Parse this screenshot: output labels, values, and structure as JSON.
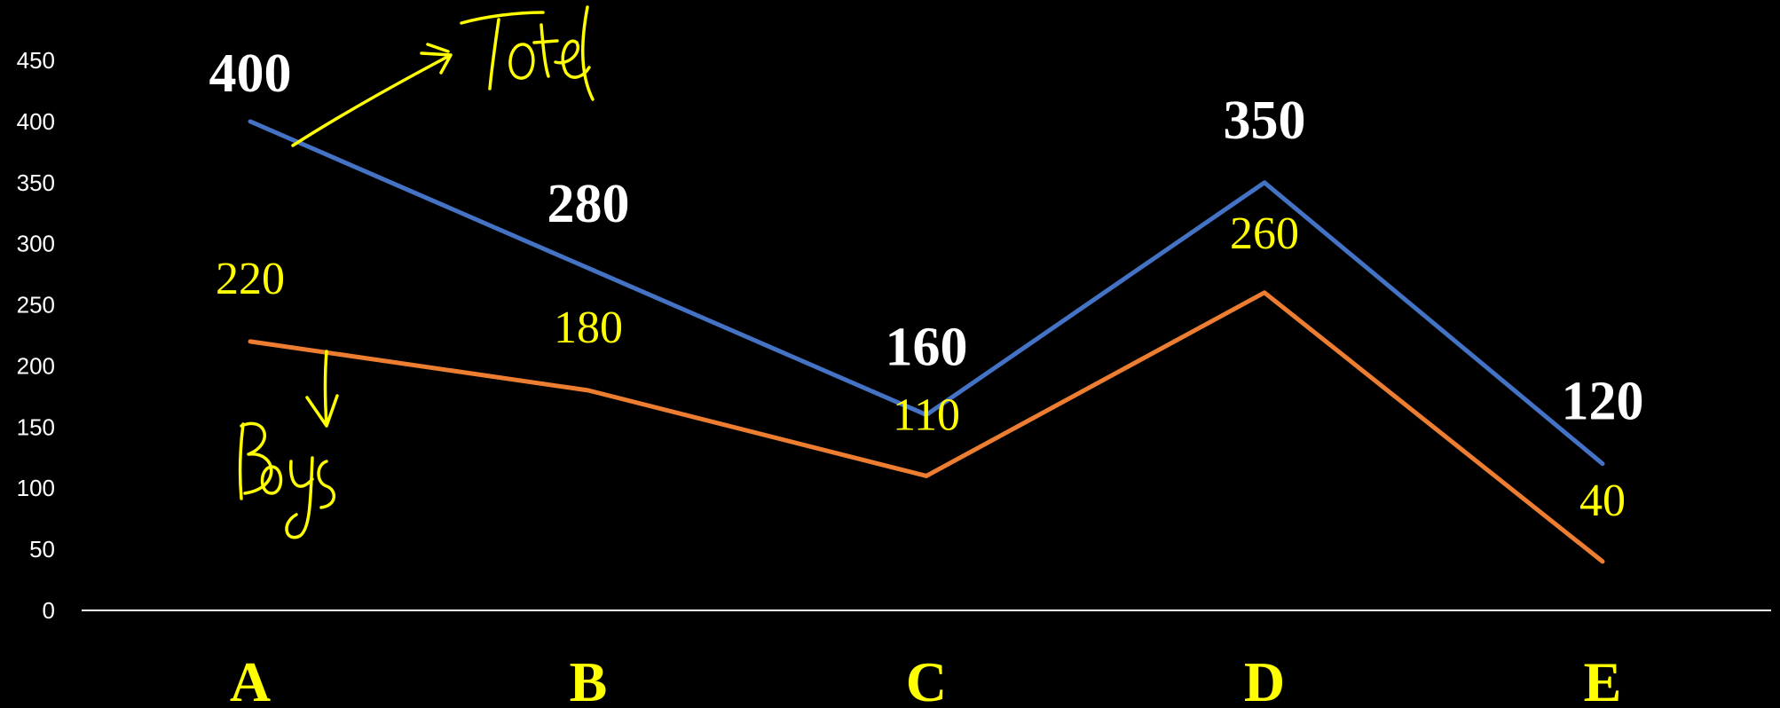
{
  "chart_data": {
    "type": "line",
    "categories": [
      "A",
      "B",
      "C",
      "D",
      "E"
    ],
    "series": [
      {
        "name": "Total",
        "values": [
          400,
          280,
          160,
          350,
          120
        ],
        "color": "#4472c4"
      },
      {
        "name": "Boys",
        "values": [
          220,
          180,
          110,
          260,
          40
        ],
        "color": "#ed7d31"
      }
    ],
    "y_ticks": [
      "0",
      "50",
      "100",
      "150",
      "200",
      "250",
      "300",
      "350",
      "400",
      "450"
    ],
    "ylim": [
      0,
      450
    ],
    "grid": false,
    "legend": "none",
    "annotations": [
      "Total",
      "Boys"
    ],
    "colors": {
      "background": "#000000",
      "axis": "#ffffff",
      "category_labels": "#ffff00",
      "total_labels": "#ffffff",
      "boys_labels": "#ffff00",
      "handwriting": "#ffff00"
    }
  }
}
